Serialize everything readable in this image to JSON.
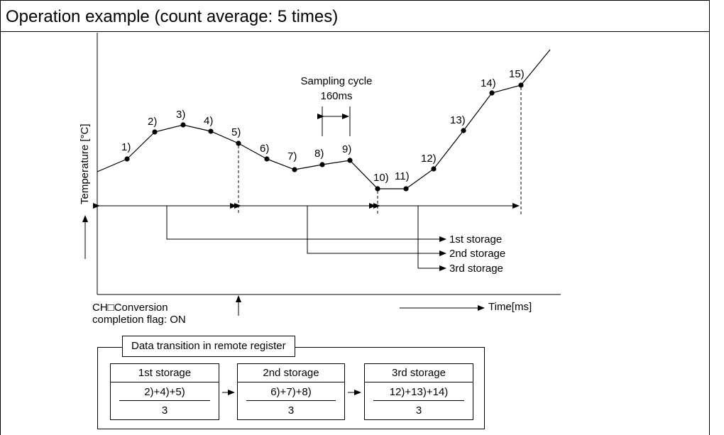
{
  "title": "Operation example (count average: 5 times)",
  "y_axis_label": "Temperature [°C]",
  "x_axis_label": "Time[ms]",
  "sampling_label": {
    "line1": "Sampling cycle",
    "line2": "160ms"
  },
  "points": [
    "1)",
    "2)",
    "3)",
    "4)",
    "5)",
    "6)",
    "7)",
    "8)",
    "9)",
    "10)",
    "11)",
    "12)",
    "13)",
    "14)",
    "15)"
  ],
  "storage_labels": [
    "1st storage",
    "2nd storage",
    "3rd storage"
  ],
  "flag_label": {
    "line1": "CH□Conversion",
    "line2": "completion flag: ON"
  },
  "panel": {
    "title": "Data transition in remote register",
    "boxes": [
      {
        "header": "1st storage",
        "numerator": "2)+4)+5)",
        "denominator": "3"
      },
      {
        "header": "2nd storage",
        "numerator": "6)+7)+8)",
        "denominator": "3"
      },
      {
        "header": "3rd storage",
        "numerator": "12)+13)+14)",
        "denominator": "3"
      }
    ]
  },
  "colors": {
    "line": "#000000",
    "background": "#ffffff"
  }
}
